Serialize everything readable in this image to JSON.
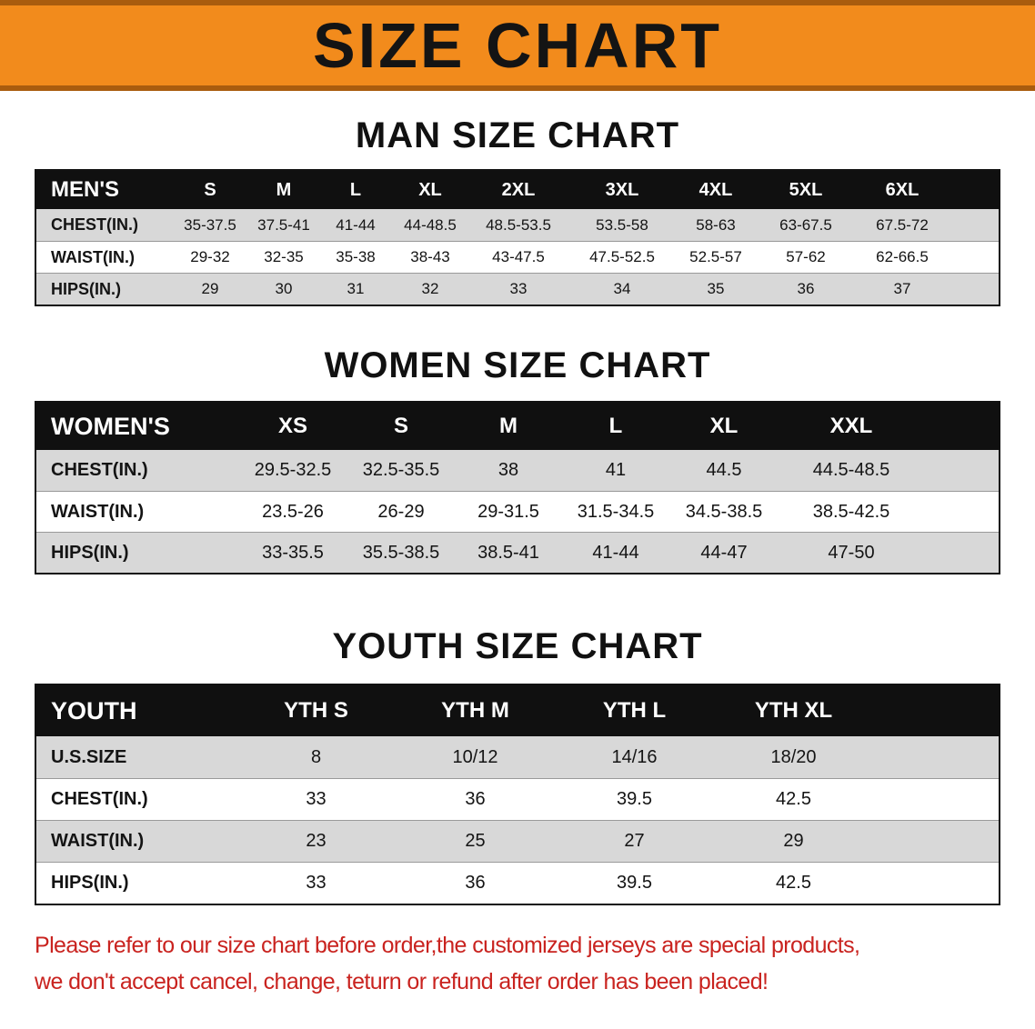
{
  "banner": {
    "title": "SIZE CHART"
  },
  "sections": [
    {
      "id": "men",
      "heading": "MAN SIZE CHART",
      "table": {
        "header": [
          "MEN'S",
          "S",
          "M",
          "L",
          "XL",
          "2XL",
          "3XL",
          "4XL",
          "5XL",
          "6XL"
        ],
        "rows": [
          [
            "CHEST(IN.)",
            "35-37.5",
            "37.5-41",
            "41-44",
            "44-48.5",
            "48.5-53.5",
            "53.5-58",
            "58-63",
            "63-67.5",
            "67.5-72"
          ],
          [
            "WAIST(IN.)",
            "29-32",
            "32-35",
            "35-38",
            "38-43",
            "43-47.5",
            "47.5-52.5",
            "52.5-57",
            "57-62",
            "62-66.5"
          ],
          [
            "HIPS(IN.)",
            "29",
            "30",
            "31",
            "32",
            "33",
            "34",
            "35",
            "36",
            "37"
          ]
        ]
      }
    },
    {
      "id": "women",
      "heading": "WOMEN SIZE CHART",
      "table": {
        "header": [
          "WOMEN'S",
          "XS",
          "S",
          "M",
          "L",
          "XL",
          "XXL"
        ],
        "rows": [
          [
            "CHEST(IN.)",
            "29.5-32.5",
            "32.5-35.5",
            "38",
            "41",
            "44.5",
            "44.5-48.5"
          ],
          [
            "WAIST(IN.)",
            "23.5-26",
            "26-29",
            "29-31.5",
            "31.5-34.5",
            "34.5-38.5",
            "38.5-42.5"
          ],
          [
            "HIPS(IN.)",
            "33-35.5",
            "35.5-38.5",
            "38.5-41",
            "41-44",
            "44-47",
            "47-50"
          ]
        ]
      }
    },
    {
      "id": "youth",
      "heading": "YOUTH SIZE CHART",
      "table": {
        "header": [
          "YOUTH",
          "YTH S",
          "YTH M",
          "YTH L",
          "YTH XL"
        ],
        "rows": [
          [
            "U.S.SIZE",
            "8",
            "10/12",
            "14/16",
            "18/20"
          ],
          [
            "CHEST(IN.)",
            "33",
            "36",
            "39.5",
            "42.5"
          ],
          [
            "WAIST(IN.)",
            "23",
            "25",
            "27",
            "29"
          ],
          [
            "HIPS(IN.)",
            "33",
            "36",
            "39.5",
            "42.5"
          ]
        ]
      }
    }
  ],
  "disclaimer": {
    "line1": "Please refer to our size chart before order,the customized jerseys are special products,",
    "line2": "we don't accept cancel, change, teturn or refund after order has been placed!"
  },
  "colors": {
    "banner_orange": "#f28b1c",
    "banner_edge": "#a95c0e",
    "header_black": "#101010",
    "row_gray": "#d8d8d8",
    "row_white": "#ffffff",
    "disclaimer_red": "#c9231f"
  }
}
